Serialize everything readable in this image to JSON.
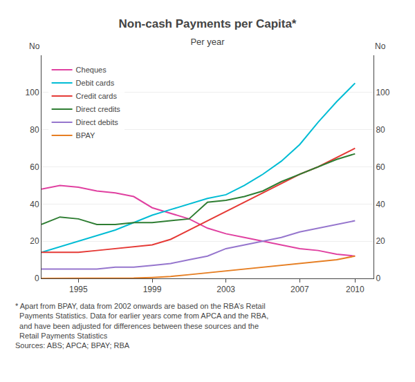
{
  "chart_data": {
    "type": "line",
    "title": "Non-cash Payments per Capita*",
    "subtitle": "Per year",
    "ylabel": "No",
    "y2label": "No",
    "footnote": [
      "* Apart from BPAY, data from 2002 onwards are based on the RBA’s Retail",
      "  Payments Statistics. Data for earlier years come from APCA and the RBA,",
      "  and have been adjusted for differences between these sources and the",
      "  Retail Payments Statistics"
    ],
    "source": "Sources: ABS; APCA; BPAY; RBA",
    "x": [
      1993,
      1994,
      1995,
      1996,
      1997,
      1998,
      1999,
      2000,
      2001,
      2002,
      2003,
      2004,
      2005,
      2006,
      2007,
      2008,
      2009,
      2010
    ],
    "series": [
      {
        "name": "Cheques",
        "color": "#e040a0",
        "values": [
          48,
          50,
          49,
          47,
          46,
          44,
          38,
          35,
          32,
          27,
          24,
          22,
          20,
          18,
          16,
          15,
          13,
          12
        ]
      },
      {
        "name": "Debit cards",
        "color": "#00bcd4",
        "values": [
          14,
          17,
          20,
          23,
          26,
          30,
          34,
          37,
          40,
          43,
          45,
          50,
          56,
          63,
          72,
          84,
          95,
          105
        ]
      },
      {
        "name": "Credit cards",
        "color": "#e53935",
        "values": [
          14,
          14,
          14,
          15,
          16,
          17,
          18,
          21,
          26,
          31,
          36,
          41,
          46,
          51,
          56,
          60,
          65,
          70
        ]
      },
      {
        "name": "Direct credits",
        "color": "#2e7d32",
        "values": [
          29,
          33,
          32,
          29,
          29,
          30,
          30,
          31,
          32,
          41,
          42,
          44,
          47,
          52,
          56,
          60,
          64,
          67
        ]
      },
      {
        "name": "Direct debits",
        "color": "#9575cd",
        "values": [
          5,
          5,
          5,
          5,
          6,
          6,
          7,
          8,
          10,
          12,
          16,
          18,
          20,
          22,
          25,
          27,
          29,
          31
        ]
      },
      {
        "name": "BPAY",
        "color": "#e67e22",
        "values": [
          0,
          0,
          0,
          0,
          0,
          0.2,
          0.5,
          1,
          2,
          3,
          4,
          5,
          6,
          7,
          8,
          9,
          10,
          12
        ]
      }
    ],
    "xlim": [
      1993,
      2011
    ],
    "xticks": [
      1995,
      1999,
      2003,
      2007,
      2010
    ],
    "ylim": [
      0,
      120
    ],
    "yticks": [
      0,
      20,
      40,
      60,
      80,
      100
    ],
    "y2lim": [
      0,
      120
    ],
    "y2ticks": [
      0,
      20,
      40,
      60,
      80,
      100
    ],
    "grid": "y",
    "legend": "top-left"
  }
}
